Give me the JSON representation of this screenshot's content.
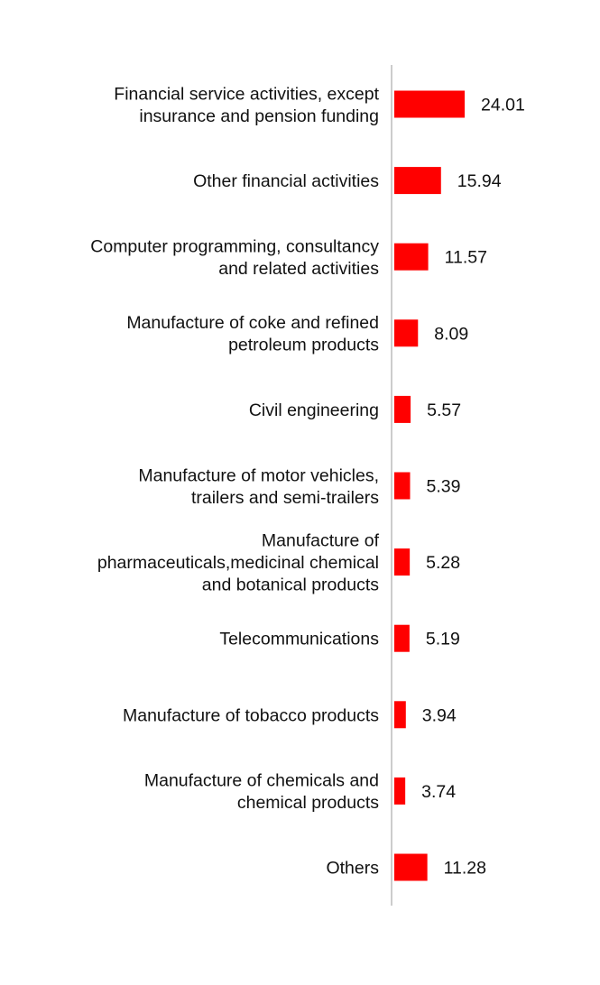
{
  "chart_data": {
    "type": "bar",
    "orientation": "horizontal",
    "categories": [
      [
        "Financial service activities, except",
        "insurance and pension funding"
      ],
      [
        "Other financial activities"
      ],
      [
        "Computer programming, consultancy",
        "and related activities"
      ],
      [
        "Manufacture of coke and refined",
        "petroleum products"
      ],
      [
        "Civil engineering"
      ],
      [
        "Manufacture of motor vehicles,",
        "trailers and semi-trailers"
      ],
      [
        "Manufacture of",
        "pharmaceuticals,medicinal chemical",
        "and botanical products"
      ],
      [
        "Telecommunications"
      ],
      [
        "Manufacture of tobacco products"
      ],
      [
        "Manufacture of chemicals and",
        "chemical products"
      ],
      [
        "Others"
      ]
    ],
    "values": [
      24.01,
      15.94,
      11.57,
      8.09,
      5.57,
      5.39,
      5.28,
      5.19,
      3.94,
      3.74,
      11.28
    ],
    "value_labels": [
      "24.01",
      "15.94",
      "11.57",
      "8.09",
      "5.57",
      "5.39",
      "5.28",
      "5.19",
      "3.94",
      "3.74",
      "11.28"
    ],
    "bar_color": "#ff0000",
    "axis_color": "#cccccc",
    "xlim": [
      0,
      24.01
    ],
    "grid": false,
    "legend": "none",
    "title": "",
    "xlabel": "",
    "ylabel": ""
  }
}
